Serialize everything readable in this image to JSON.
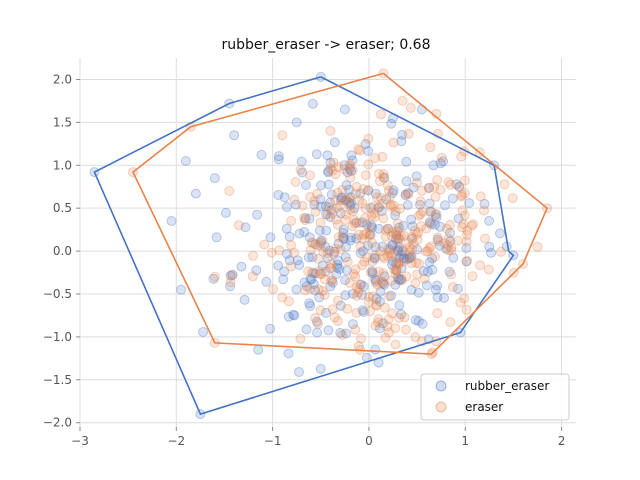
{
  "chart_data": {
    "type": "scatter",
    "title": "rubber_eraser -> eraser; 0.68",
    "xlabel": "",
    "ylabel": "",
    "xlim": [
      -3.0,
      2.15
    ],
    "ylim": [
      -2.05,
      2.25
    ],
    "xticks": [
      -3,
      -2,
      -1,
      0,
      1,
      2
    ],
    "yticks": [
      -2.0,
      -1.5,
      -1.0,
      -0.5,
      0.0,
      0.5,
      1.0,
      1.5,
      2.0
    ],
    "grid": true,
    "legend_position": "lower-right",
    "series": [
      {
        "name": "rubber_eraser",
        "color": "#4472c4",
        "hull": [
          [
            -0.5,
            2.03
          ],
          [
            1.3,
            1.0
          ],
          [
            1.45,
            0.0
          ],
          [
            1.5,
            -0.05
          ],
          [
            0.95,
            -0.95
          ],
          [
            -1.75,
            -1.9
          ],
          [
            -2.85,
            0.92
          ],
          [
            -1.45,
            1.72
          ],
          [
            -0.5,
            2.03
          ]
        ],
        "points": [
          [
            -0.5,
            2.03
          ],
          [
            -1.45,
            1.72
          ],
          [
            -2.85,
            0.92
          ],
          [
            -1.75,
            -1.9
          ],
          [
            1.5,
            -0.05
          ],
          [
            1.3,
            1.0
          ],
          [
            0.95,
            -0.95
          ],
          [
            -2.05,
            0.35
          ],
          [
            -1.95,
            -0.45
          ],
          [
            -1.15,
            -1.15
          ],
          [
            -1.9,
            1.05
          ],
          [
            -1.6,
            0.85
          ],
          [
            -1.4,
            1.35
          ],
          [
            1.2,
            0.55
          ],
          [
            1.25,
            0.05
          ],
          [
            0.1,
            -1.3
          ],
          [
            0.55,
            1.65
          ],
          [
            0.25,
            1.55
          ],
          [
            -0.25,
            1.65
          ],
          [
            -0.75,
            1.5
          ]
        ]
      },
      {
        "name": "eraser",
        "color": "#e8834a",
        "hull": [
          [
            0.15,
            2.07
          ],
          [
            1.85,
            0.5
          ],
          [
            1.6,
            -0.15
          ],
          [
            0.65,
            -1.2
          ],
          [
            -1.6,
            -1.07
          ],
          [
            -2.45,
            0.92
          ],
          [
            -1.85,
            1.45
          ],
          [
            0.15,
            2.07
          ]
        ],
        "points": [
          [
            0.15,
            2.07
          ],
          [
            1.85,
            0.5
          ],
          [
            1.6,
            -0.15
          ],
          [
            0.65,
            -1.2
          ],
          [
            -1.6,
            -1.07
          ],
          [
            -2.45,
            0.92
          ],
          [
            -1.85,
            1.45
          ],
          [
            1.75,
            0.05
          ],
          [
            -1.45,
            0.7
          ],
          [
            -1.6,
            -0.3
          ],
          [
            -1.35,
            0.3
          ],
          [
            0.35,
            1.75
          ],
          [
            0.7,
            1.6
          ],
          [
            1.15,
            1.15
          ],
          [
            -0.9,
            1.35
          ],
          [
            -0.4,
            1.4
          ],
          [
            0.55,
            -1.05
          ]
        ]
      }
    ],
    "cloud": {
      "rubber_eraser": {
        "n": 280,
        "sx": 0.62,
        "sy": 0.62,
        "cx": -0.05,
        "cy": 0.12,
        "seed": 11
      },
      "eraser": {
        "n": 320,
        "sx": 0.55,
        "sy": 0.6,
        "cx": 0.05,
        "cy": 0.1,
        "seed": 29
      }
    }
  }
}
